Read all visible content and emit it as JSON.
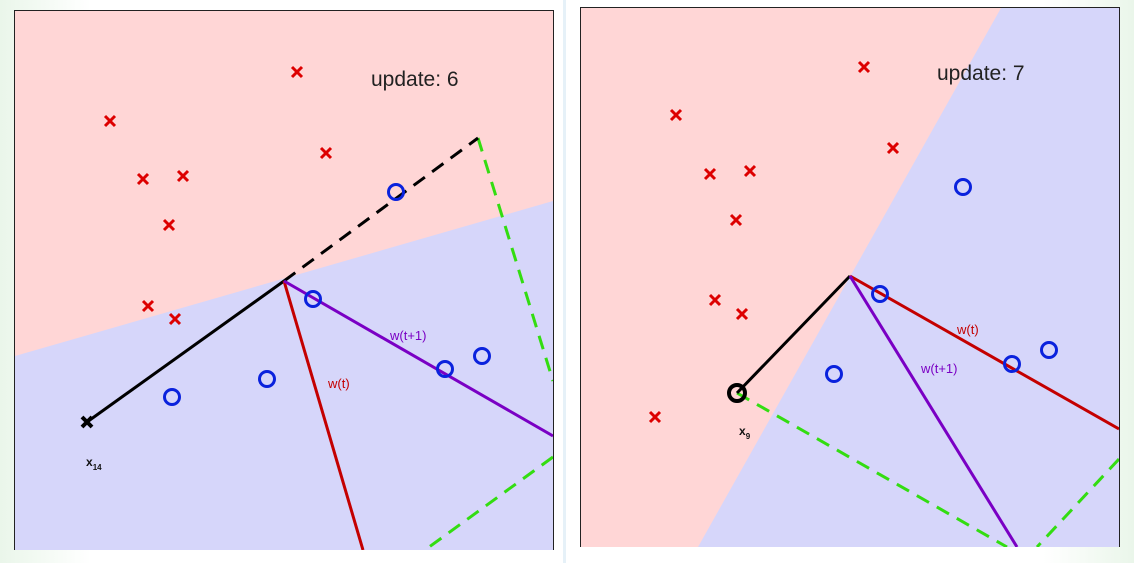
{
  "panels": [
    {
      "update_label": "update: 6",
      "point_label": {
        "base": "x",
        "sub": "14"
      },
      "w_t_label": "w(t)",
      "w_t1_label": "w(t+1)"
    },
    {
      "update_label": "update: 7",
      "point_label": {
        "base": "x",
        "sub": "9"
      },
      "w_t_label": "w(t)",
      "w_t1_label": "w(t+1)"
    }
  ],
  "colors": {
    "region_red": "#ffd6d6",
    "region_blue": "#d6d6fa",
    "cross": "#dd0000",
    "circle": "#0a22dd",
    "w_t": "#c40000",
    "w_t1": "#7a00c4",
    "projection": "#33dd11",
    "x_vector": "#000000"
  },
  "icons": {
    "negative_point": "cross-icon",
    "positive_point": "circle-icon",
    "misclassified": "bold-marker-icon"
  }
}
